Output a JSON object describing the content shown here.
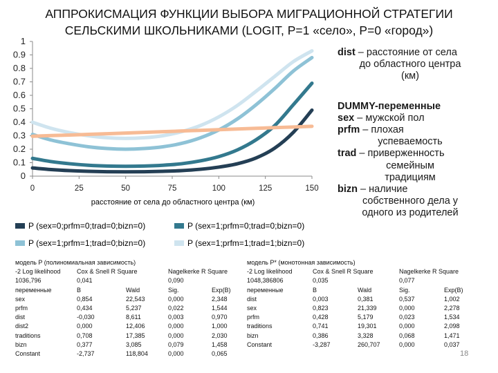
{
  "title_line1": "АППРОКИСМАЦИЯ ФУНКЦИИ ВЫБОРА МИГРАЦИОННОЙ СТРАТЕГИИ",
  "title_line2": "СЕЛЬСКИМИ ШКОЛЬНИКАМИ (LOGIT, P=1 «село», P=0 «город»)",
  "chart_data": {
    "type": "line",
    "x": [
      0,
      10,
      20,
      30,
      40,
      50,
      60,
      70,
      80,
      90,
      100,
      110,
      120,
      130,
      140,
      150
    ],
    "xlabel": "расстояние от села до областного центра (км)",
    "ylabel": "",
    "xlim": [
      0,
      150
    ],
    "ylim": [
      0,
      1
    ],
    "x_ticks": [
      "0",
      "25",
      "50",
      "75",
      "100",
      "125",
      "150"
    ],
    "y_ticks": [
      "0",
      "0.1",
      "0.2",
      "0.3",
      "0.4",
      "0.5",
      "0.6",
      "0.7",
      "0.8",
      "0.9",
      "1"
    ],
    "grid": false,
    "legend_position": "bottom",
    "series": [
      {
        "name": "P (sex=0;prfm=0;trad=0;bizn=0)",
        "color": "#243f55",
        "values": [
          0.061,
          0.049,
          0.041,
          0.036,
          0.033,
          0.032,
          0.033,
          0.036,
          0.041,
          0.051,
          0.067,
          0.092,
          0.135,
          0.208,
          0.325,
          0.49
        ]
      },
      {
        "name": "P (sex=1;prfm=0;trad=0;bizn=0)",
        "color": "#33798e",
        "values": [
          0.132,
          0.108,
          0.092,
          0.081,
          0.075,
          0.073,
          0.075,
          0.081,
          0.092,
          0.113,
          0.145,
          0.195,
          0.27,
          0.375,
          0.53,
          0.69
        ]
      },
      {
        "name": "P (sex=1;prfm=1;trad=0;bizn=0)",
        "color": "#8ec2d6",
        "values": [
          0.31,
          0.268,
          0.24,
          0.218,
          0.205,
          0.2,
          0.205,
          0.218,
          0.243,
          0.284,
          0.343,
          0.425,
          0.53,
          0.65,
          0.78,
          0.88
        ]
      },
      {
        "name": "P (sex=1;prfm=1;trad=1;bizn=0)",
        "color": "#cfe4ef",
        "values": [
          0.4,
          0.355,
          0.323,
          0.3,
          0.285,
          0.28,
          0.285,
          0.3,
          0.33,
          0.375,
          0.44,
          0.525,
          0.63,
          0.74,
          0.85,
          0.93
        ]
      },
      {
        "name": "",
        "color": "#f7bb95",
        "values": [
          0.296,
          0.301,
          0.305,
          0.31,
          0.315,
          0.32,
          0.325,
          0.33,
          0.335,
          0.34,
          0.345,
          0.35,
          0.355,
          0.36,
          0.365,
          0.37
        ]
      }
    ]
  },
  "notes": {
    "dist_head": "dist",
    "dist_text": " – расстояние от села",
    "dist_text2": "до областного центра",
    "dist_text3": "(км)",
    "dummy_head": "DUMMY-переменные",
    "sex_head": "sex",
    "sex_text": " – мужской пол",
    "prfm_head": "prfm",
    "prfm_text": " – плохая",
    "prfm_text2": "успеваемость",
    "trad_head": "trad",
    "trad_text": " – приверженность",
    "trad_text2": "семейным",
    "trad_text3": "традициям",
    "bizn_head": "bizn",
    "bizn_text": " – наличие",
    "bizn_text2": "собственного дела у",
    "bizn_text3": "одного из родителей"
  },
  "table_left": {
    "rows": [
      [
        "модель P (полиномиальная зависимость)",
        "",
        "",
        "",
        "",
        ""
      ],
      [
        "-2 Log likelihood",
        "Cox & Snell R Square",
        "",
        "Nagelkerke R Square",
        "",
        ""
      ],
      [
        "1036,796",
        "0,041",
        "",
        "0,090",
        "",
        ""
      ],
      [
        "переменные",
        "B",
        "Wald",
        "Sig.",
        "Exp(B)",
        ""
      ],
      [
        "sex",
        "0,854",
        "22,543",
        "0,000",
        "2,348",
        ""
      ],
      [
        "prfm",
        "0,434",
        "5,237",
        "0,022",
        "1,544",
        ""
      ],
      [
        "dist",
        "-0,030",
        "8,611",
        "0,003",
        "0,970",
        ""
      ],
      [
        "dist2",
        "0,000",
        "12,406",
        "0,000",
        "1,000",
        ""
      ],
      [
        "traditions",
        "0,708",
        "17,385",
        "0,000",
        "2,030",
        ""
      ],
      [
        "bizn",
        "0,377",
        "3,085",
        "0,079",
        "1,458",
        ""
      ],
      [
        "Constant",
        "-2,737",
        "118,804",
        "0,000",
        "0,065",
        ""
      ]
    ]
  },
  "table_right": {
    "rows": [
      [
        "модель P* (монотонная зависимость)",
        "",
        "",
        "",
        ""
      ],
      [
        "-2 Log likelihood",
        "Cox & Snell R Square",
        "",
        "Nagelkerke R Square",
        ""
      ],
      [
        "1048,386806",
        "0,035",
        "",
        "0,077",
        ""
      ],
      [
        "переменные",
        "B",
        "Wald",
        "Sig.",
        "Exp(B)"
      ],
      [
        "dist",
        "0,003",
        "0,381",
        "0,537",
        "1,002"
      ],
      [
        "sex",
        "0,823",
        "21,339",
        "0,000",
        "2,278"
      ],
      [
        "prfm",
        "0,428",
        "5,179",
        "0,023",
        "1,534"
      ],
      [
        "traditions",
        "0,741",
        "19,301",
        "0,000",
        "2,098"
      ],
      [
        "bizn",
        "0,386",
        "3,328",
        "0,068",
        "1,471"
      ],
      [
        "Constant",
        "-3,287",
        "260,707",
        "0,000",
        "0,037"
      ]
    ]
  },
  "page_number": "18"
}
